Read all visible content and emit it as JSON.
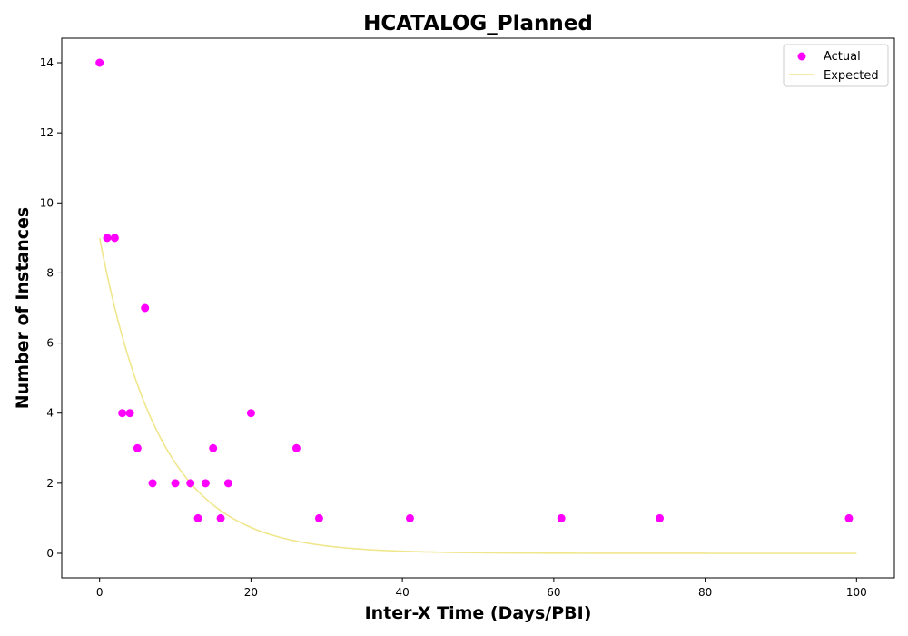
{
  "chart_data": {
    "type": "scatter",
    "title": "HCATALOG_Planned",
    "xlabel": "Inter-X Time (Days/PBI)",
    "ylabel": "Number of Instances",
    "xlim": [
      -5,
      105
    ],
    "ylim": [
      -0.7,
      14.7
    ],
    "xticks": [
      0,
      20,
      40,
      60,
      80,
      100
    ],
    "yticks": [
      0,
      2,
      4,
      6,
      8,
      10,
      12,
      14
    ],
    "grid": false,
    "legend_position": "top-right",
    "series": [
      {
        "name": "Actual",
        "kind": "scatter",
        "color": "#ff00ff",
        "points": [
          [
            0,
            14
          ],
          [
            1,
            9
          ],
          [
            2,
            9
          ],
          [
            3,
            4
          ],
          [
            4,
            4
          ],
          [
            5,
            3
          ],
          [
            6,
            7
          ],
          [
            7,
            2
          ],
          [
            10,
            2
          ],
          [
            12,
            2
          ],
          [
            13,
            1
          ],
          [
            14,
            2
          ],
          [
            15,
            3
          ],
          [
            16,
            1
          ],
          [
            17,
            2
          ],
          [
            20,
            4
          ],
          [
            26,
            3
          ],
          [
            29,
            1
          ],
          [
            41,
            1
          ],
          [
            61,
            1
          ],
          [
            74,
            1
          ],
          [
            99,
            1
          ]
        ]
      },
      {
        "name": "Expected",
        "kind": "line",
        "color": "#f0e68c",
        "function": "exponential",
        "amplitude": 9,
        "rate": 0.125,
        "x_range": [
          0,
          100
        ]
      }
    ]
  }
}
